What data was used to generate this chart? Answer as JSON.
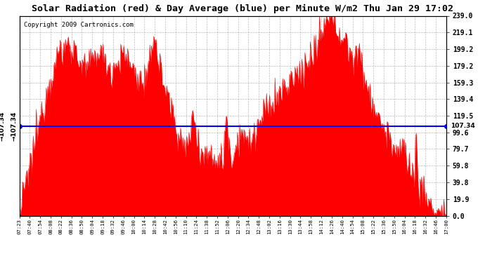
{
  "title": "Solar Radiation (red) & Day Average (blue) per Minute W/m2 Thu Jan 29 17:02",
  "copyright": "Copyright 2009 Cartronics.com",
  "avg_value": 107.34,
  "y_min": 0.0,
  "y_max": 239.0,
  "y_ticks": [
    0.0,
    19.9,
    39.8,
    59.8,
    79.7,
    99.6,
    119.5,
    139.4,
    159.3,
    179.2,
    199.2,
    219.1,
    239.0
  ],
  "bar_color": "#FF0000",
  "avg_line_color": "#0000FF",
  "background_color": "#FFFFFF",
  "grid_color": "#AAAAAA",
  "x_tick_labels": [
    "07:23",
    "07:40",
    "07:54",
    "08:08",
    "08:22",
    "08:36",
    "08:50",
    "09:04",
    "09:18",
    "09:32",
    "09:46",
    "10:00",
    "10:14",
    "10:28",
    "10:42",
    "10:56",
    "11:10",
    "11:24",
    "11:38",
    "11:52",
    "12:06",
    "12:20",
    "12:34",
    "12:48",
    "13:02",
    "13:16",
    "13:30",
    "13:44",
    "13:58",
    "14:12",
    "14:26",
    "14:40",
    "14:54",
    "15:08",
    "15:22",
    "15:36",
    "15:50",
    "16:04",
    "16:18",
    "16:32",
    "16:46",
    "17:00"
  ],
  "num_points": 557
}
